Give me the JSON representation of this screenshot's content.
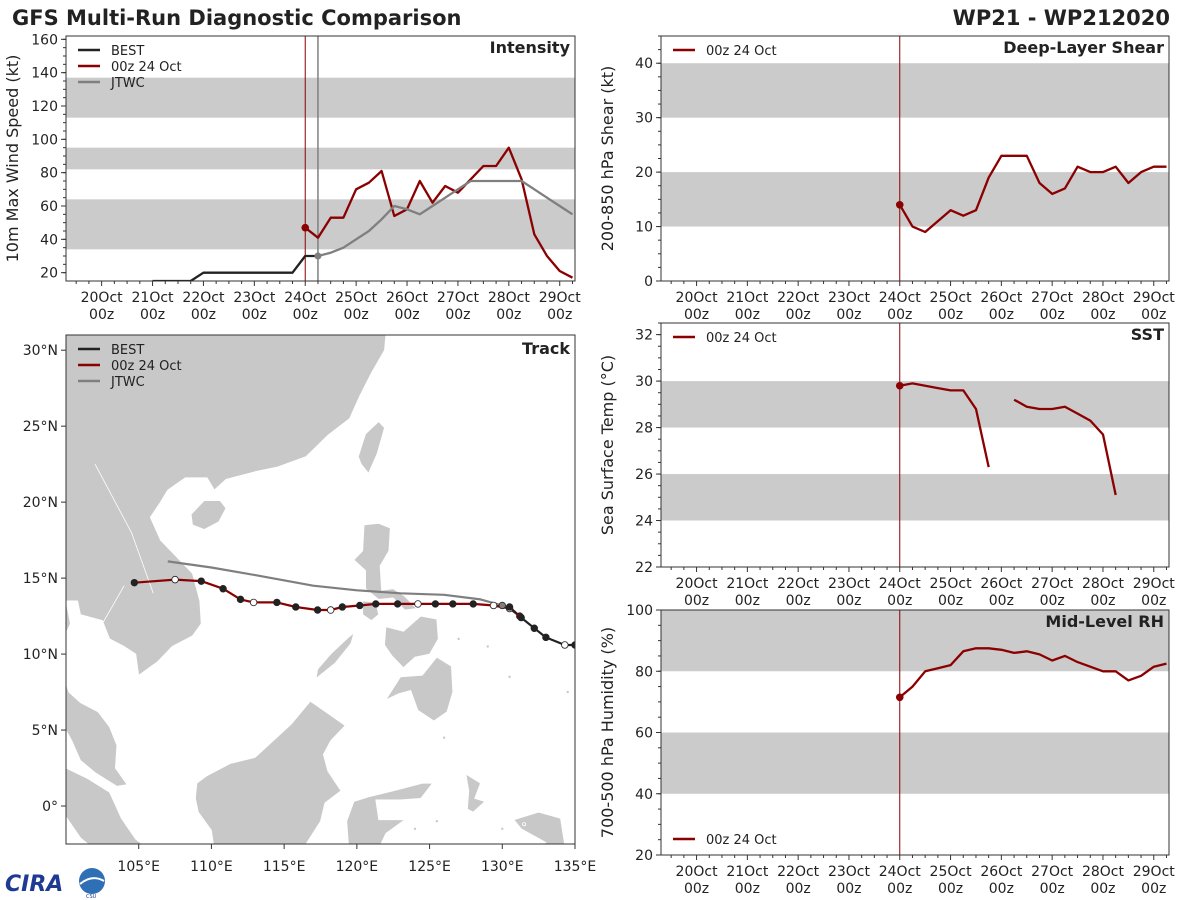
{
  "header": {
    "title": "GFS Multi-Run Diagnostic Comparison",
    "storm_id": "WP21 - WP212020"
  },
  "colors": {
    "best": "#222222",
    "gfs": "#8b0000",
    "jtwc": "#7f7f7f",
    "band": "#cbcbcb",
    "land": "#c8c8c8"
  },
  "time_axis": {
    "labels": [
      "20Oct\n00z",
      "21Oct\n00z",
      "22Oct\n00z",
      "23Oct\n00z",
      "24Oct\n00z",
      "25Oct\n00z",
      "26Oct\n00z",
      "27Oct\n00z",
      "28Oct\n00z",
      "29Oct\n00z"
    ],
    "range_days": [
      -0.7,
      9.3
    ],
    "init_day": 4.0
  },
  "legend_labels": {
    "best": "BEST",
    "gfs": "00z 24 Oct",
    "jtwc": "JTWC"
  },
  "chart_data": [
    {
      "id": "intensity",
      "type": "line",
      "title": "Intensity",
      "ylabel": "10m Max Wind Speed (kt)",
      "ylim": [
        15,
        162
      ],
      "yticks": [
        20,
        40,
        60,
        80,
        100,
        120,
        140,
        160
      ],
      "bands": [
        [
          34,
          64
        ],
        [
          82,
          95
        ],
        [
          113,
          137
        ]
      ],
      "jtwc_marker_day": 4.25,
      "legend": [
        "best",
        "gfs",
        "jtwc"
      ],
      "series": [
        {
          "name": "BEST",
          "key": "best",
          "x": [
            1.0,
            1.75,
            2.0,
            2.75,
            3.5,
            3.75,
            4.0,
            4.25
          ],
          "y": [
            15,
            15,
            20,
            20,
            20,
            20,
            30,
            30
          ]
        },
        {
          "name": "00z 24 Oct",
          "key": "gfs",
          "x": [
            4.0,
            4.25,
            4.5,
            4.75,
            5.0,
            5.25,
            5.5,
            5.75,
            6.0,
            6.25,
            6.5,
            6.75,
            7.0,
            7.25,
            7.5,
            7.75,
            8.0,
            8.25,
            8.5,
            8.75,
            9.0,
            9.25
          ],
          "y": [
            47,
            41,
            53,
            53,
            70,
            74,
            81,
            54,
            58,
            75,
            62,
            72,
            68,
            76,
            84,
            84,
            95,
            76,
            43,
            30,
            21,
            17
          ]
        },
        {
          "name": "JTWC",
          "key": "jtwc",
          "x": [
            4.25,
            4.5,
            4.75,
            5.0,
            5.25,
            5.5,
            5.75,
            6.0,
            6.25,
            6.5,
            6.75,
            7.0,
            7.25,
            7.5,
            7.75,
            8.0,
            8.25,
            8.5,
            8.75,
            9.0,
            9.25
          ],
          "y": [
            30,
            32,
            35,
            40,
            45,
            52,
            60,
            58,
            55,
            60,
            65,
            70,
            75,
            75,
            75,
            75,
            75,
            70,
            65,
            60,
            55
          ]
        }
      ]
    },
    {
      "id": "shear",
      "type": "line",
      "title": "Deep-Layer Shear",
      "ylabel": "200-850 hPa Shear (kt)",
      "ylim": [
        0,
        45
      ],
      "yticks": [
        0,
        10,
        20,
        30,
        40
      ],
      "bands": [
        [
          10,
          20
        ],
        [
          30,
          40
        ]
      ],
      "legend": [
        "gfs"
      ],
      "series": [
        {
          "name": "00z 24 Oct",
          "key": "gfs",
          "x": [
            4.0,
            4.25,
            4.5,
            4.75,
            5.0,
            5.25,
            5.5,
            5.75,
            6.0,
            6.25,
            6.5,
            6.75,
            7.0,
            7.25,
            7.5,
            7.75,
            8.0,
            8.25,
            8.5,
            8.75,
            9.0,
            9.25
          ],
          "y": [
            14,
            10,
            9,
            11,
            13,
            12,
            13,
            19,
            23,
            23,
            23,
            18,
            16,
            17,
            21,
            20,
            20,
            21,
            18,
            20,
            21,
            21
          ]
        }
      ]
    },
    {
      "id": "sst",
      "type": "line",
      "title": "SST",
      "ylabel": "Sea Surface Temp (°C)",
      "ylim": [
        22,
        32.5
      ],
      "yticks": [
        22,
        24,
        26,
        28,
        30,
        32
      ],
      "bands": [
        [
          24,
          26
        ],
        [
          28,
          30
        ]
      ],
      "legend": [
        "gfs"
      ],
      "series": [
        {
          "name": "00z 24 Oct",
          "key": "gfs",
          "segments": [
            {
              "x": [
                4.0,
                4.25,
                4.5,
                4.75,
                5.0,
                5.25,
                5.5,
                5.75
              ],
              "y": [
                29.8,
                29.9,
                29.8,
                29.7,
                29.6,
                29.6,
                28.8,
                26.3
              ]
            },
            {
              "x": [
                6.25,
                6.5,
                6.75,
                7.0,
                7.25,
                7.5,
                7.75,
                8.0,
                8.25
              ],
              "y": [
                29.2,
                28.9,
                28.8,
                28.8,
                28.9,
                28.6,
                28.3,
                27.7,
                25.1
              ]
            }
          ]
        }
      ]
    },
    {
      "id": "rh",
      "type": "line",
      "title": "Mid-Level RH",
      "ylabel": "700-500 hPa Humidity (%)",
      "ylim": [
        20,
        100
      ],
      "yticks": [
        20,
        40,
        60,
        80,
        100
      ],
      "bands": [
        [
          40,
          60
        ],
        [
          80,
          100
        ]
      ],
      "legend": [
        "gfs"
      ],
      "legend_position": "bottom-left",
      "series": [
        {
          "name": "00z 24 Oct",
          "key": "gfs",
          "x": [
            4.0,
            4.25,
            4.5,
            4.75,
            5.0,
            5.25,
            5.5,
            5.75,
            6.0,
            6.25,
            6.5,
            6.75,
            7.0,
            7.25,
            7.5,
            7.75,
            8.0,
            8.25,
            8.5,
            8.75,
            9.0,
            9.25
          ],
          "y": [
            71.5,
            75,
            80,
            81,
            82,
            86.5,
            87.5,
            87.5,
            87,
            86,
            86.5,
            85.5,
            83.5,
            85,
            83,
            81.5,
            80,
            80,
            77,
            78.5,
            81.5,
            82.5
          ]
        }
      ]
    },
    {
      "id": "track",
      "type": "scatter",
      "title": "Track",
      "xlim": [
        100.0,
        135.0
      ],
      "ylim": [
        -2.5,
        31.0
      ],
      "xticks": [
        105,
        110,
        115,
        120,
        125,
        130,
        135
      ],
      "xtick_labels": [
        "105°E",
        "110°E",
        "115°E",
        "120°E",
        "125°E",
        "130°E",
        "135°E"
      ],
      "yticks": [
        0,
        5,
        10,
        15,
        20,
        25,
        30
      ],
      "ytick_labels": [
        "0°",
        "5°N",
        "10°N",
        "15°N",
        "20°N",
        "25°N",
        "30°N"
      ],
      "legend": [
        "best",
        "gfs",
        "jtwc"
      ],
      "series": [
        {
          "name": "BEST",
          "key": "best",
          "lon": [
            135.0,
            134.3,
            133.0,
            132.2,
            131.3,
            130.5
          ],
          "lat": [
            10.6,
            10.6,
            11.1,
            11.7,
            12.4,
            13.1
          ],
          "open": [
            false,
            true,
            false,
            false,
            false,
            false
          ]
        },
        {
          "name": "00z 24 Oct",
          "key": "gfs",
          "lon": [
            131.2,
            130.5,
            129.4,
            128.0,
            126.6,
            125.4,
            124.2,
            122.8,
            121.3,
            120.2,
            119.0,
            118.2,
            117.3,
            115.8,
            114.5,
            112.9,
            112.0,
            110.8,
            109.3,
            107.5,
            104.7
          ],
          "lat": [
            12.5,
            13.0,
            13.2,
            13.3,
            13.3,
            13.3,
            13.3,
            13.3,
            13.3,
            13.2,
            13.1,
            12.9,
            12.9,
            13.1,
            13.4,
            13.4,
            13.6,
            14.3,
            14.8,
            14.9,
            14.7
          ],
          "marker_open": [
            false,
            true,
            true,
            false,
            false,
            false,
            true,
            false,
            false,
            false,
            false,
            true,
            false,
            false,
            false,
            true,
            false,
            false,
            false,
            true,
            false
          ]
        },
        {
          "name": "JTWC",
          "key": "jtwc",
          "lon": [
            130.0,
            128.5,
            126.0,
            123.0,
            120.0,
            117.0,
            113.0,
            110.0,
            107.0
          ],
          "lat": [
            13.2,
            13.6,
            13.9,
            14.0,
            14.2,
            14.5,
            15.2,
            15.7,
            16.1
          ],
          "marker_open": [
            false,
            false,
            false,
            false,
            false,
            false,
            false,
            false,
            false
          ]
        }
      ]
    }
  ],
  "logo": {
    "text": "CIRA",
    "sub": "CSU"
  }
}
